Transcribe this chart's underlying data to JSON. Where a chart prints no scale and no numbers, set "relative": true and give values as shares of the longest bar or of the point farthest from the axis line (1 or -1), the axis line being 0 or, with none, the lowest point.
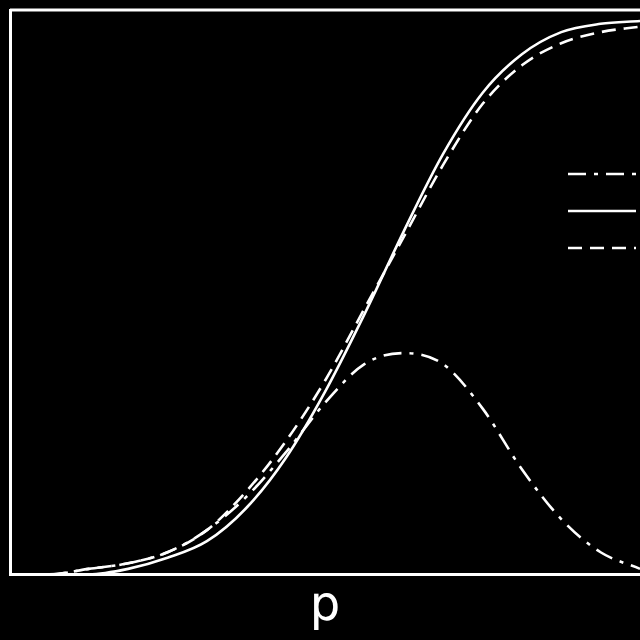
{
  "chart_data": {
    "type": "line",
    "relative": true,
    "xlabel": "p",
    "marker": "none",
    "grid": false,
    "categories": [
      null,
      null,
      null,
      null,
      null,
      null,
      null,
      null,
      null,
      null,
      null,
      null,
      null,
      null,
      null,
      null,
      null
    ],
    "series": [
      {
        "color": "#ffffff",
        "line_style": "dashdot",
        "values": [
          0,
          0,
          0.01,
          0.02,
          0.04,
          0.08,
          0.14,
          0.22,
          0.31,
          0.38,
          0.4,
          0.38,
          0.3,
          0.19,
          0.1,
          0.04,
          0.01
        ]
      },
      {
        "color": "#ffffff",
        "line_style": "solid",
        "values": [
          0,
          0,
          0,
          0.01,
          0.03,
          0.06,
          0.12,
          0.21,
          0.33,
          0.47,
          0.62,
          0.76,
          0.87,
          0.94,
          0.98,
          0.995,
          1
        ]
      },
      {
        "color": "#ffffff",
        "line_style": "dashed",
        "values": [
          0,
          0,
          0.01,
          0.02,
          0.04,
          0.08,
          0.15,
          0.24,
          0.35,
          0.48,
          0.61,
          0.74,
          0.85,
          0.92,
          0.96,
          0.98,
          0.99
        ]
      }
    ]
  }
}
